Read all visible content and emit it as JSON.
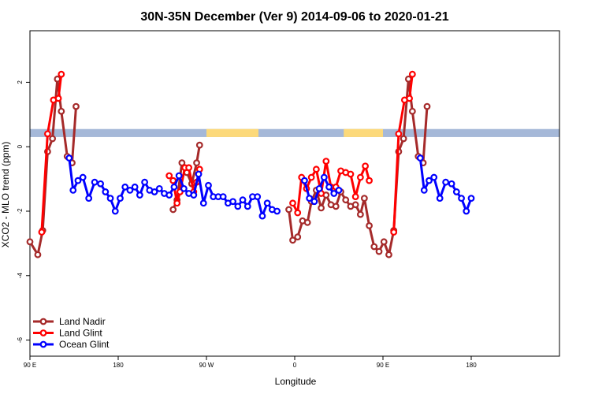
{
  "chart_data": {
    "type": "line",
    "title": "30N-35N December (Ver 9)   2014-09-06 to 2020-01-21",
    "xlabel": "Longitude",
    "ylabel": "XCO2 - MLO trend (ppm)",
    "xlim": [
      0,
      540
    ],
    "ylim": [
      -6.5,
      3.6
    ],
    "x_ticks": [
      {
        "value": 0,
        "label": "90 E"
      },
      {
        "value": 90,
        "label": "180"
      },
      {
        "value": 180,
        "label": "90 W"
      },
      {
        "value": 270,
        "label": "0"
      },
      {
        "value": 360,
        "label": "90 E"
      },
      {
        "value": 450,
        "label": "180"
      }
    ],
    "y_ticks": [
      {
        "value": 2,
        "label": "2"
      },
      {
        "value": 0,
        "label": "0"
      },
      {
        "value": -2,
        "label": "-2"
      },
      {
        "value": -4,
        "label": "-4"
      },
      {
        "value": -6,
        "label": "-6"
      }
    ],
    "legend_position": "bottom-left",
    "land_mask_band": {
      "y_range": [
        0.3,
        0.55
      ],
      "ocean_color": "#a5b8d8",
      "land_color": "#fcd97a",
      "land_segments": [
        [
          180,
          233
        ],
        [
          320,
          360
        ]
      ]
    },
    "series": [
      {
        "name": "Land Nadir",
        "color": "#a52a2a",
        "segments": [
          [
            [
              0,
              -2.95
            ],
            [
              8,
              -3.35
            ],
            [
              13,
              -2.6
            ],
            [
              18,
              -0.15
            ],
            [
              23,
              0.25
            ],
            [
              28,
              2.1
            ],
            [
              32,
              1.1
            ],
            [
              38,
              -0.3
            ],
            [
              43,
              -0.5
            ],
            [
              47,
              1.25
            ]
          ],
          [
            [
              146,
              -1.95
            ],
            [
              150,
              -1.65
            ],
            [
              155,
              -0.5
            ],
            [
              160,
              -0.8
            ],
            [
              165,
              -1.15
            ],
            [
              170,
              -0.5
            ],
            [
              173,
              0.05
            ]
          ],
          [
            [
              264,
              -1.95
            ],
            [
              268,
              -2.9
            ],
            [
              273,
              -2.8
            ],
            [
              278,
              -2.3
            ],
            [
              283,
              -2.35
            ],
            [
              287,
              -1.7
            ],
            [
              292,
              -1.35
            ],
            [
              297,
              -1.9
            ],
            [
              302,
              -1.5
            ],
            [
              307,
              -1.8
            ],
            [
              312,
              -1.85
            ],
            [
              317,
              -1.4
            ],
            [
              322,
              -1.65
            ],
            [
              327,
              -1.85
            ],
            [
              332,
              -1.8
            ],
            [
              337,
              -2.1
            ],
            [
              341,
              -1.6
            ],
            [
              346,
              -2.45
            ],
            [
              351,
              -3.1
            ],
            [
              356,
              -3.25
            ],
            [
              361,
              -2.95
            ],
            [
              366,
              -3.35
            ],
            [
              371,
              -2.6
            ],
            [
              376,
              -0.15
            ],
            [
              381,
              0.25
            ],
            [
              386,
              2.1
            ],
            [
              390,
              1.1
            ],
            [
              396,
              -0.3
            ],
            [
              401,
              -0.5
            ],
            [
              405,
              1.25
            ]
          ]
        ]
      },
      {
        "name": "Land Glint",
        "color": "#ff0000",
        "segments": [
          [
            [
              12,
              -2.65
            ],
            [
              18,
              0.4
            ],
            [
              24,
              1.45
            ],
            [
              29,
              1.5
            ],
            [
              32,
              2.25
            ]
          ],
          [
            [
              142,
              -0.9
            ],
            [
              146,
              -1.05
            ],
            [
              150,
              -1.75
            ],
            [
              153,
              -1.4
            ],
            [
              158,
              -0.65
            ],
            [
              162,
              -0.65
            ],
            [
              167,
              -1.4
            ],
            [
              170,
              -1.1
            ],
            [
              173,
              -0.7
            ]
          ],
          [
            [
              268,
              -1.75
            ],
            [
              273,
              -2.05
            ],
            [
              277,
              -0.95
            ],
            [
              282,
              -1.3
            ],
            [
              287,
              -0.95
            ],
            [
              292,
              -0.7
            ],
            [
              297,
              -1.45
            ],
            [
              302,
              -0.45
            ],
            [
              307,
              -1.25
            ],
            [
              312,
              -1.25
            ],
            [
              317,
              -0.75
            ],
            [
              322,
              -0.8
            ],
            [
              327,
              -0.85
            ],
            [
              332,
              -1.55
            ],
            [
              337,
              -0.95
            ],
            [
              342,
              -0.6
            ],
            [
              346,
              -1.05
            ]
          ],
          [
            [
              371,
              -2.65
            ],
            [
              376,
              0.4
            ],
            [
              382,
              1.45
            ],
            [
              387,
              1.5
            ],
            [
              390,
              2.25
            ]
          ]
        ]
      },
      {
        "name": "Ocean Glint",
        "color": "#0000ff",
        "segments": [
          [
            [
              40,
              -0.35
            ],
            [
              44,
              -1.35
            ],
            [
              49,
              -1.05
            ],
            [
              54,
              -0.95
            ],
            [
              60,
              -1.6
            ],
            [
              66,
              -1.1
            ],
            [
              72,
              -1.15
            ],
            [
              77,
              -1.4
            ],
            [
              82,
              -1.6
            ],
            [
              87,
              -2.0
            ],
            [
              92,
              -1.6
            ],
            [
              97,
              -1.25
            ],
            [
              102,
              -1.35
            ],
            [
              107,
              -1.25
            ],
            [
              112,
              -1.5
            ],
            [
              117,
              -1.1
            ],
            [
              122,
              -1.35
            ],
            [
              127,
              -1.4
            ],
            [
              132,
              -1.3
            ],
            [
              137,
              -1.45
            ],
            [
              142,
              -1.5
            ],
            [
              147,
              -1.25
            ],
            [
              152,
              -0.9
            ],
            [
              157,
              -1.3
            ],
            [
              162,
              -1.45
            ],
            [
              167,
              -1.5
            ],
            [
              172,
              -0.85
            ],
            [
              177,
              -1.75
            ],
            [
              182,
              -1.2
            ],
            [
              187,
              -1.55
            ],
            [
              192,
              -1.55
            ],
            [
              197,
              -1.55
            ],
            [
              202,
              -1.75
            ],
            [
              207,
              -1.7
            ],
            [
              212,
              -1.85
            ],
            [
              217,
              -1.65
            ],
            [
              222,
              -1.85
            ],
            [
              227,
              -1.55
            ],
            [
              232,
              -1.55
            ],
            [
              237,
              -2.15
            ],
            [
              242,
              -1.75
            ],
            [
              247,
              -1.95
            ],
            [
              252,
              -2.0
            ]
          ],
          [
            [
              280,
              -1.05
            ],
            [
              285,
              -1.6
            ],
            [
              290,
              -1.7
            ],
            [
              295,
              -1.3
            ],
            [
              300,
              -0.95
            ],
            [
              305,
              -1.25
            ],
            [
              310,
              -1.45
            ],
            [
              315,
              -1.35
            ]
          ],
          [
            [
              398,
              -0.35
            ],
            [
              402,
              -1.35
            ],
            [
              407,
              -1.05
            ],
            [
              412,
              -0.95
            ],
            [
              418,
              -1.6
            ],
            [
              424,
              -1.1
            ],
            [
              430,
              -1.15
            ],
            [
              435,
              -1.4
            ],
            [
              440,
              -1.6
            ],
            [
              445,
              -2.0
            ],
            [
              450,
              -1.6
            ]
          ]
        ]
      }
    ]
  }
}
